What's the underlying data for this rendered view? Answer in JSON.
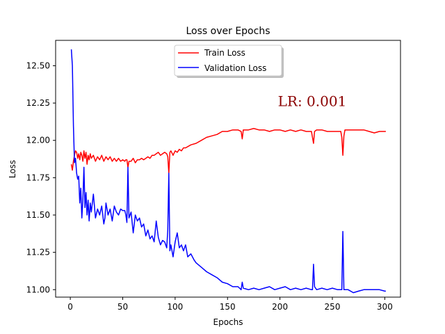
{
  "chart_data": {
    "type": "line",
    "title": "Loss over Epochs",
    "xlabel": "Epochs",
    "ylabel": "Loss",
    "xlim": [
      -14,
      315
    ],
    "ylim": [
      10.95,
      12.67
    ],
    "xticks": [
      0,
      50,
      100,
      150,
      200,
      250,
      300
    ],
    "yticks": [
      11.0,
      11.25,
      11.5,
      11.75,
      12.0,
      12.25,
      12.5
    ],
    "ytick_labels": [
      "11.00",
      "11.25",
      "11.50",
      "11.75",
      "12.00",
      "12.25",
      "12.50"
    ],
    "grid": false,
    "legend": {
      "placement": "top-center",
      "entries": [
        "Train Loss",
        "Validation Loss"
      ]
    },
    "annotation": {
      "text": "LR: 0.001",
      "x": 198,
      "y": 12.23,
      "color": "#8b0000"
    },
    "series": [
      {
        "name": "Train Loss",
        "color": "#ff0000",
        "x": [
          1,
          2,
          3,
          4,
          5,
          6,
          7,
          8,
          9,
          10,
          11,
          12,
          13,
          14,
          15,
          16,
          17,
          18,
          19,
          20,
          22,
          24,
          26,
          28,
          30,
          32,
          34,
          36,
          38,
          40,
          42,
          44,
          46,
          48,
          50,
          52,
          53,
          54,
          55,
          56,
          58,
          60,
          62,
          64,
          66,
          68,
          70,
          72,
          74,
          76,
          78,
          80,
          82,
          84,
          86,
          88,
          90,
          92,
          93,
          94,
          95,
          96,
          98,
          100,
          102,
          104,
          106,
          108,
          110,
          115,
          120,
          125,
          130,
          135,
          140,
          145,
          150,
          155,
          160,
          163,
          164,
          165,
          170,
          175,
          180,
          185,
          190,
          195,
          200,
          205,
          210,
          215,
          220,
          225,
          230,
          231,
          232,
          233,
          235,
          240,
          245,
          250,
          255,
          258,
          259,
          260,
          261,
          262,
          265,
          270,
          275,
          280,
          285,
          290,
          295,
          300,
          301
        ],
        "y": [
          11.84,
          11.8,
          11.86,
          11.9,
          11.93,
          11.92,
          11.88,
          11.91,
          11.87,
          11.92,
          11.9,
          11.86,
          11.93,
          11.88,
          11.92,
          11.84,
          11.9,
          11.87,
          11.91,
          11.88,
          11.9,
          11.86,
          11.89,
          11.87,
          11.9,
          11.86,
          11.89,
          11.87,
          11.89,
          11.86,
          11.88,
          11.86,
          11.88,
          11.86,
          11.87,
          11.86,
          11.87,
          11.87,
          11.82,
          11.86,
          11.86,
          11.88,
          11.85,
          11.87,
          11.87,
          11.88,
          11.87,
          11.88,
          11.89,
          11.88,
          11.9,
          11.9,
          11.91,
          11.92,
          11.9,
          11.91,
          11.92,
          11.91,
          11.89,
          11.78,
          11.92,
          11.93,
          11.9,
          11.93,
          11.92,
          11.94,
          11.93,
          11.95,
          11.95,
          11.97,
          11.98,
          12.0,
          12.02,
          12.03,
          12.04,
          12.06,
          12.06,
          12.07,
          12.07,
          12.06,
          12.01,
          12.07,
          12.07,
          12.08,
          12.07,
          12.07,
          12.06,
          12.07,
          12.07,
          12.06,
          12.07,
          12.06,
          12.07,
          12.06,
          12.06,
          12.02,
          11.98,
          12.06,
          12.07,
          12.07,
          12.06,
          12.06,
          12.06,
          12.06,
          12.02,
          11.9,
          12.03,
          12.07,
          12.07,
          12.07,
          12.07,
          12.07,
          12.06,
          12.05,
          12.06,
          12.06,
          12.06
        ]
      },
      {
        "name": "Validation Loss",
        "color": "#0000ff",
        "x": [
          1,
          2,
          3,
          4,
          5,
          6,
          7,
          8,
          9,
          10,
          11,
          12,
          13,
          14,
          15,
          16,
          17,
          18,
          19,
          20,
          22,
          24,
          26,
          28,
          30,
          32,
          33,
          34,
          36,
          38,
          40,
          42,
          44,
          46,
          48,
          50,
          52,
          53,
          54,
          55,
          56,
          58,
          60,
          62,
          64,
          66,
          68,
          70,
          72,
          74,
          76,
          78,
          80,
          82,
          84,
          86,
          88,
          90,
          92,
          93,
          94,
          95,
          96,
          98,
          100,
          102,
          104,
          106,
          108,
          110,
          112,
          115,
          118,
          120,
          125,
          130,
          135,
          140,
          145,
          150,
          155,
          160,
          163,
          164,
          165,
          170,
          175,
          180,
          185,
          190,
          195,
          200,
          205,
          210,
          215,
          220,
          225,
          230,
          231,
          232,
          233,
          235,
          240,
          245,
          250,
          255,
          258,
          259,
          260,
          261,
          262,
          265,
          270,
          275,
          280,
          285,
          290,
          295,
          300,
          301
        ],
        "y": [
          12.61,
          12.5,
          12.1,
          11.85,
          11.88,
          11.78,
          11.74,
          11.76,
          11.58,
          11.68,
          11.48,
          11.6,
          11.82,
          11.55,
          11.65,
          11.5,
          11.6,
          11.46,
          11.58,
          11.52,
          11.64,
          11.48,
          11.54,
          11.5,
          11.56,
          11.44,
          11.48,
          11.58,
          11.5,
          11.54,
          11.46,
          11.56,
          11.52,
          11.5,
          11.54,
          11.53,
          11.53,
          11.5,
          11.45,
          11.82,
          11.48,
          11.52,
          11.38,
          11.5,
          11.46,
          11.48,
          11.42,
          11.44,
          11.36,
          11.4,
          11.34,
          11.36,
          11.32,
          11.46,
          11.35,
          11.3,
          11.33,
          11.32,
          11.28,
          11.4,
          11.78,
          11.26,
          11.3,
          11.22,
          11.32,
          11.38,
          11.28,
          11.3,
          11.26,
          11.3,
          11.22,
          11.24,
          11.2,
          11.18,
          11.15,
          11.12,
          11.1,
          11.08,
          11.05,
          11.04,
          11.02,
          11.02,
          11.0,
          11.05,
          11.01,
          11.0,
          11.01,
          11.0,
          11.01,
          11.02,
          11.0,
          11.01,
          11.02,
          11.0,
          11.01,
          11.0,
          11.01,
          11.0,
          11.0,
          11.17,
          11.02,
          11.0,
          11.01,
          11.0,
          11.01,
          11.0,
          11.0,
          11.0,
          11.39,
          11.0,
          11.0,
          11.0,
          10.98,
          10.99,
          11.0,
          11.0,
          11.0,
          11.0,
          10.99,
          10.99
        ]
      }
    ]
  }
}
